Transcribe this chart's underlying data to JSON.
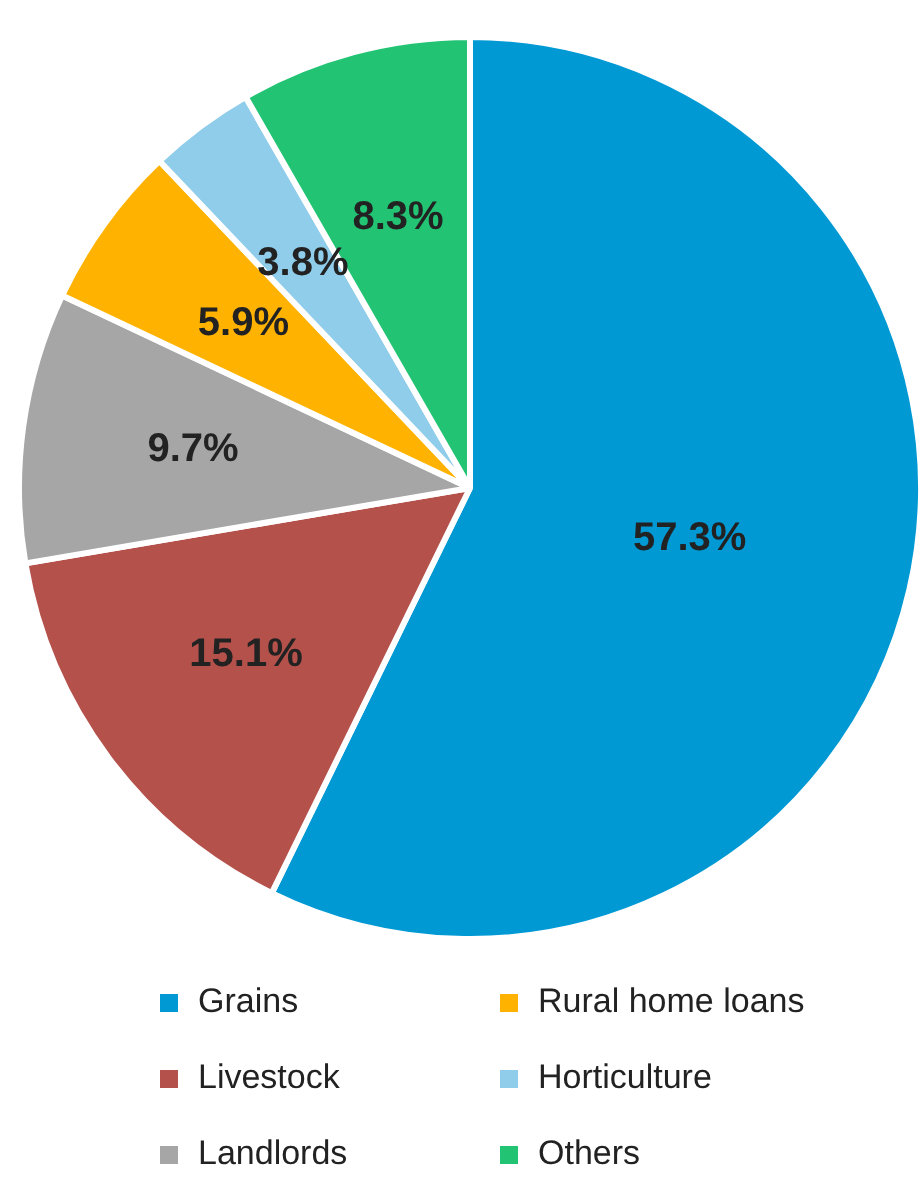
{
  "chart_data": {
    "type": "pie",
    "categories": [
      "Grains",
      "Livestock",
      "Landlords",
      "Rural home loans",
      "Horticulture",
      "Others"
    ],
    "values": [
      57.3,
      15.1,
      9.7,
      5.9,
      3.8,
      8.3
    ],
    "colors": [
      "#0099d4",
      "#b5514b",
      "#a6a6a6",
      "#ffb300",
      "#8fcdea",
      "#22c474"
    ],
    "value_labels": [
      "57.3%",
      "15.1%",
      "9.7%",
      "5.9%",
      "3.8%",
      "8.3%"
    ],
    "legend": "bottom"
  }
}
